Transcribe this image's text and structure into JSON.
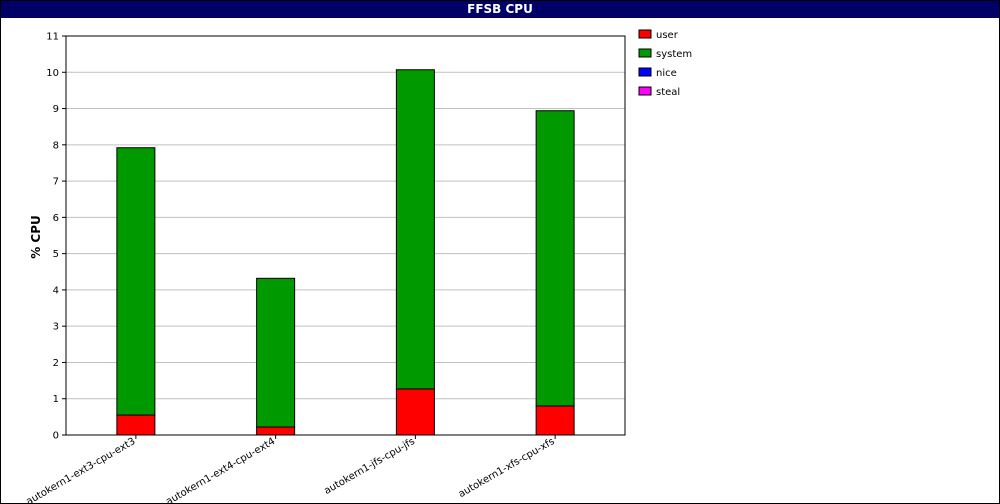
{
  "chart_data": {
    "type": "bar",
    "stacked": true,
    "title": "FFSB CPU",
    "xlabel": "",
    "ylabel": "% CPU",
    "ylim": [
      0,
      11
    ],
    "yticks": [
      0,
      1,
      2,
      3,
      4,
      5,
      6,
      7,
      8,
      9,
      10,
      11
    ],
    "grid": true,
    "legend_position": "right",
    "categories": [
      "autokern1-ext3-cpu-ext3",
      "autokern1-ext4-cpu-ext4",
      "autokern1-jfs-cpu-jfs",
      "autokern1-xfs-cpu-xfs"
    ],
    "series": [
      {
        "name": "user",
        "color": "#ff0000",
        "values": [
          0.55,
          0.22,
          1.27,
          0.8
        ]
      },
      {
        "name": "system",
        "color": "#009900",
        "values": [
          7.37,
          4.1,
          8.8,
          8.14
        ]
      },
      {
        "name": "nice",
        "color": "#0000ff",
        "values": [
          0,
          0,
          0,
          0
        ]
      },
      {
        "name": "steal",
        "color": "#ff00ff",
        "values": [
          0,
          0,
          0,
          0
        ]
      }
    ]
  }
}
